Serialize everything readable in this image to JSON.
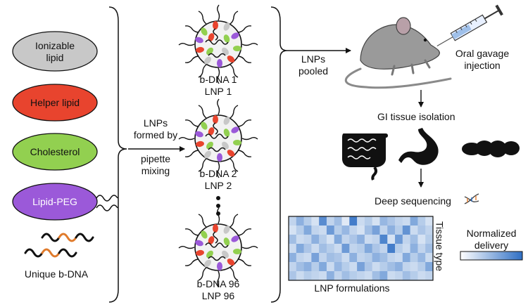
{
  "components": {
    "ionizable": {
      "label_line1": "Ionizable",
      "label_line2": "lipid",
      "color": "#c8c8c8"
    },
    "helper": {
      "label": "Helper lipid",
      "color": "#e8442e"
    },
    "cholesterol": {
      "label": "Cholesterol",
      "color": "#92d050"
    },
    "peg": {
      "label": "Lipid-PEG",
      "color": "#9b59d9"
    },
    "bdna": {
      "label": "Unique b-DNA",
      "barcode_color": "#e07b2c"
    }
  },
  "formation": {
    "line1": "LNPs",
    "line2": "formed by",
    "line3": "pipette",
    "line4": "mixing"
  },
  "lnps": [
    {
      "line1": "b-DNA 1",
      "line2": "LNP 1"
    },
    {
      "line1": "b-DNA 2",
      "line2": "LNP 2"
    },
    {
      "line1": "b-DNA 96",
      "line2": "LNP 96"
    }
  ],
  "pooled": {
    "line1": "LNPs",
    "line2": "pooled"
  },
  "injection": {
    "line1": "Oral gavage",
    "line2": "injection"
  },
  "steps": {
    "isolation": "GI tissue isolation",
    "sequencing": "Deep sequencing"
  },
  "heatmap": {
    "xlabel": "LNP formulations",
    "ylabel": "Tissue type",
    "colorbar_line1": "Normalized",
    "colorbar_line2": "delivery",
    "low_color": "#ffffff",
    "high_color": "#2f6fc4",
    "values": [
      [
        0.3,
        0.55,
        0.35,
        0.2,
        0.8,
        0.3,
        0.45,
        0.15,
        0.9,
        0.25,
        0.35,
        0.2,
        0.5,
        0.4,
        0.3,
        0.25,
        0.6,
        0.35,
        0.2
      ],
      [
        0.2,
        0.35,
        0.6,
        0.3,
        0.25,
        0.7,
        0.35,
        0.5,
        0.3,
        0.2,
        0.45,
        0.65,
        0.3,
        0.55,
        0.35,
        0.75,
        0.25,
        0.4,
        0.3
      ],
      [
        0.45,
        0.25,
        0.3,
        0.55,
        0.35,
        0.2,
        0.6,
        0.3,
        0.4,
        0.55,
        0.25,
        0.3,
        0.85,
        0.2,
        0.7,
        0.3,
        0.45,
        0.2,
        0.35
      ],
      [
        0.25,
        0.6,
        0.4,
        0.25,
        0.45,
        0.35,
        0.25,
        0.7,
        0.3,
        0.35,
        0.6,
        0.4,
        0.3,
        0.9,
        0.35,
        0.25,
        0.55,
        0.3,
        0.45
      ],
      [
        0.55,
        0.3,
        0.25,
        0.65,
        0.3,
        0.45,
        0.4,
        0.25,
        0.55,
        0.3,
        0.35,
        0.55,
        0.45,
        0.3,
        0.25,
        0.6,
        0.35,
        0.5,
        0.25
      ],
      [
        0.3,
        0.45,
        0.55,
        0.35,
        0.6,
        0.25,
        0.5,
        0.35,
        0.25,
        0.65,
        0.4,
        0.25,
        0.35,
        0.45,
        0.55,
        0.3,
        0.25,
        0.35,
        0.6
      ],
      [
        0.4,
        0.25,
        0.35,
        0.3,
        0.25,
        0.55,
        0.3,
        0.45,
        0.35,
        0.3,
        0.25,
        0.45,
        0.6,
        0.25,
        0.3,
        0.45,
        0.35,
        0.25,
        0.3
      ]
    ]
  }
}
